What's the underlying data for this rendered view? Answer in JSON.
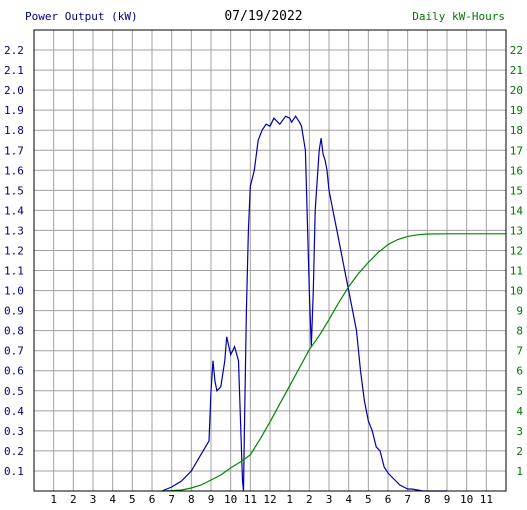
{
  "chart_data": {
    "type": "line",
    "date_label": "07/19/2022",
    "left_axis_label": "Power Output (kW)",
    "right_axis_label": "Daily kW-Hours",
    "x_ticks": [
      "1",
      "2",
      "3",
      "4",
      "5",
      "6",
      "7",
      "8",
      "9",
      "10",
      "11",
      "12",
      "1",
      "2",
      "3",
      "4",
      "5",
      "6",
      "7",
      "8",
      "9",
      "10",
      "11"
    ],
    "y_left_ticks": [
      "0.1",
      "0.2",
      "0.3",
      "0.4",
      "0.5",
      "0.6",
      "0.7",
      "0.8",
      "0.9",
      "1.0",
      "1.1",
      "1.2",
      "1.3",
      "1.4",
      "1.5",
      "1.6",
      "1.7",
      "1.8",
      "1.9",
      "2.0",
      "2.1",
      "2.2"
    ],
    "y_right_ticks": [
      "1",
      "2",
      "3",
      "4",
      "5",
      "6",
      "7",
      "8",
      "9",
      "10",
      "11",
      "12",
      "13",
      "14",
      "15",
      "16",
      "17",
      "18",
      "19",
      "20",
      "21",
      "22"
    ],
    "x_range_hours": [
      0,
      24
    ],
    "y_left_range": [
      0,
      2.3
    ],
    "y_right_range": [
      0,
      23
    ],
    "grid": true,
    "colors": {
      "power": "#0000aa",
      "energy": "#008800",
      "left_axis_text": "#000080",
      "right_axis_text": "#007700",
      "grid": "#a0a0a0"
    },
    "series": [
      {
        "name": "Power Output (kW)",
        "axis": "left",
        "x": [
          6.5,
          7.0,
          7.5,
          8.0,
          8.3,
          8.6,
          8.9,
          9.0,
          9.1,
          9.2,
          9.3,
          9.5,
          9.7,
          9.8,
          10.0,
          10.2,
          10.4,
          10.6,
          10.65,
          10.7,
          10.8,
          10.9,
          11.0,
          11.2,
          11.4,
          11.6,
          11.8,
          12.0,
          12.2,
          12.5,
          12.8,
          13.0,
          13.1,
          13.3,
          13.5,
          13.6,
          13.8,
          14.0,
          14.1,
          14.2,
          14.3,
          14.5,
          14.6,
          14.7,
          14.8,
          14.9,
          15.0,
          15.2,
          15.4,
          15.6,
          15.8,
          16.0,
          16.2,
          16.4,
          16.6,
          16.8,
          17.0,
          17.2,
          17.4,
          17.6,
          17.8,
          18.0,
          18.2,
          18.4,
          18.6,
          18.8,
          19.0,
          19.2,
          19.5,
          19.8,
          20.0,
          20.3,
          20.6,
          21.0
        ],
        "values": [
          0.0,
          0.02,
          0.05,
          0.1,
          0.15,
          0.2,
          0.25,
          0.5,
          0.65,
          0.55,
          0.5,
          0.52,
          0.65,
          0.77,
          0.68,
          0.72,
          0.65,
          0.05,
          0.0,
          0.3,
          0.9,
          1.3,
          1.52,
          1.6,
          1.75,
          1.8,
          1.83,
          1.82,
          1.86,
          1.83,
          1.87,
          1.86,
          1.84,
          1.87,
          1.84,
          1.82,
          1.7,
          1.0,
          0.72,
          1.0,
          1.4,
          1.7,
          1.76,
          1.68,
          1.65,
          1.6,
          1.5,
          1.4,
          1.3,
          1.2,
          1.1,
          1.0,
          0.9,
          0.8,
          0.6,
          0.45,
          0.35,
          0.3,
          0.22,
          0.2,
          0.12,
          0.09,
          0.07,
          0.05,
          0.03,
          0.02,
          0.01,
          0.01,
          0.005,
          0.0,
          0.0,
          0.0,
          0.0,
          0.0
        ]
      },
      {
        "name": "Daily kW-Hours",
        "axis": "right",
        "x": [
          6.5,
          7.0,
          7.5,
          8.0,
          8.5,
          9.0,
          9.5,
          10.0,
          10.5,
          11.0,
          11.5,
          12.0,
          12.5,
          13.0,
          13.5,
          14.0,
          14.5,
          15.0,
          15.5,
          16.0,
          16.5,
          17.0,
          17.5,
          18.0,
          18.5,
          19.0,
          19.5,
          20.0,
          21.0,
          22.0,
          23.0,
          24.0
        ],
        "values": [
          0.0,
          0.02,
          0.05,
          0.15,
          0.3,
          0.55,
          0.8,
          1.15,
          1.45,
          1.8,
          2.6,
          3.45,
          4.35,
          5.25,
          6.15,
          7.05,
          7.75,
          8.55,
          9.4,
          10.2,
          10.85,
          11.4,
          11.9,
          12.3,
          12.55,
          12.7,
          12.78,
          12.82,
          12.83,
          12.83,
          12.83,
          12.83
        ]
      }
    ]
  }
}
